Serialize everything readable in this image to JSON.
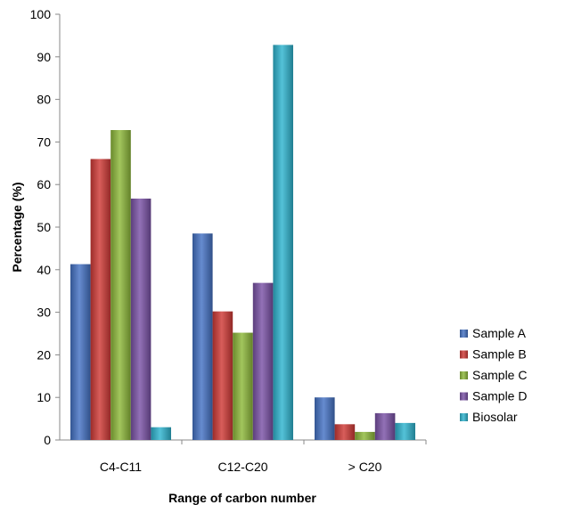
{
  "chart_data": {
    "type": "bar",
    "xlabel": "Range of carbon number",
    "ylabel": "Percentage (%)",
    "ylim": [
      0,
      100
    ],
    "yticks": [
      0,
      10,
      20,
      30,
      40,
      50,
      60,
      70,
      80,
      90,
      100
    ],
    "categories": [
      "C4-C11",
      "C12-C20",
      "> C20"
    ],
    "grid": false,
    "legend_position": "right",
    "series": [
      {
        "name": "Sample A",
        "color": "#4472C4",
        "values": [
          41.3,
          48.5,
          10.0
        ]
      },
      {
        "name": "Sample B",
        "color": "#D03A36",
        "values": [
          66.0,
          30.2,
          3.7
        ]
      },
      {
        "name": "Sample C",
        "color": "#8DB83A",
        "values": [
          72.8,
          25.2,
          1.9
        ]
      },
      {
        "name": "Sample D",
        "color": "#7A52A6",
        "values": [
          56.7,
          36.9,
          6.3
        ]
      },
      {
        "name": "Biosolar",
        "color": "#2FB4CF",
        "values": [
          3.0,
          92.8,
          4.0
        ]
      }
    ]
  }
}
